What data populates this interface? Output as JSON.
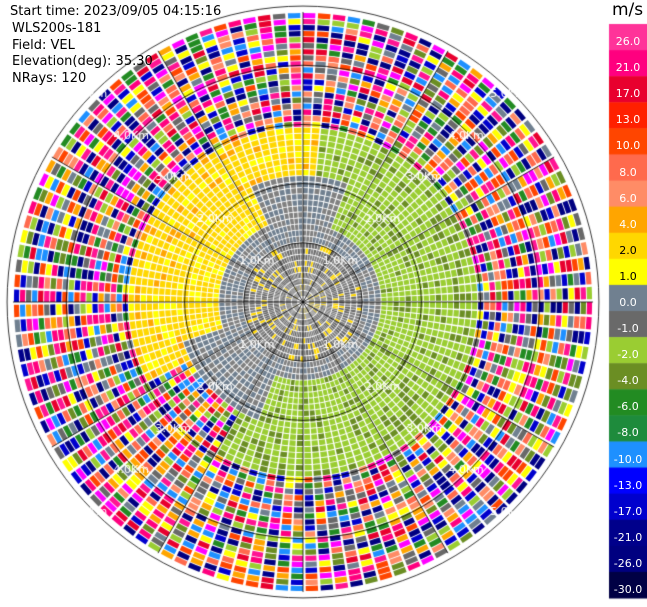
{
  "header": {
    "start_time": "Start time: 2023/09/05 04:15:16",
    "site": "WLS200s-181",
    "field": "Field: VEL",
    "elevation": "Elevation(deg): 35.30",
    "nrays": "NRays: 120"
  },
  "chart_data": {
    "type": "heatmap",
    "projection": "polar PPI",
    "field": "VEL",
    "unit": "m/s",
    "nrays": 120,
    "range_ring_labels": [
      "1.0Km",
      "2.0Km",
      "3.0Km",
      "4.0Km",
      "5.0Km"
    ],
    "range_rings_km": [
      1,
      2,
      3,
      4,
      5
    ],
    "colorbar": {
      "unit": "m/s",
      "tick_labels": [
        "26.0",
        "21.0",
        "17.0",
        "13.0",
        "10.0",
        "8.0",
        "6.0",
        "4.0",
        "2.0",
        "1.0",
        "0.0",
        "-1.0",
        "-2.0",
        "-4.0",
        "-6.0",
        "-8.0",
        "-10.0",
        "-13.0",
        "-17.0",
        "-21.0",
        "-26.0",
        "-30.0"
      ],
      "colors": [
        "#ff3399",
        "#ff007f",
        "#e8002e",
        "#ff2000",
        "#ff4500",
        "#ff6a4d",
        "#ff8c66",
        "#ffa500",
        "#ffd700",
        "#ffff00",
        "#708090",
        "#696969",
        "#9acd32",
        "#6b8e23",
        "#228b22",
        "#1e8b3c",
        "#1e90ff",
        "#0000ff",
        "#0000cd",
        "#00008b",
        "#000080",
        "#000044"
      ]
    }
  }
}
